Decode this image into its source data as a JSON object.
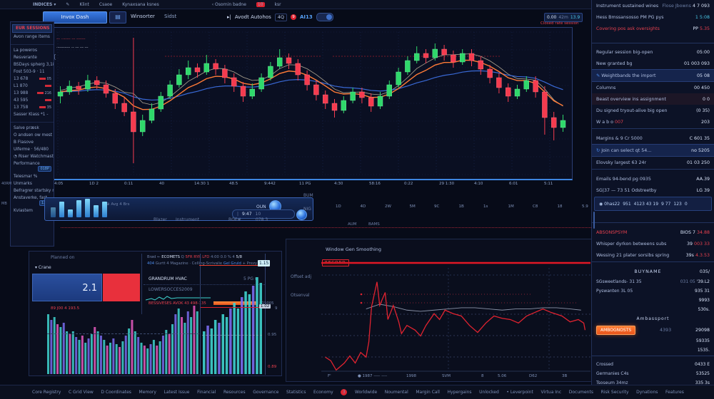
{
  "colors": {
    "up": "#2fd86b",
    "down": "#f53b4f",
    "ma_fast": "#ff7b37",
    "ma_slow": "#3c6fe0",
    "ma_mid": "#e8d9b8",
    "accent": "#3d85e0",
    "alert": "#e02330"
  },
  "menubar": {
    "brand": "INDICES",
    "caret": "▾",
    "items": [
      "✎",
      "Klint",
      "Csaoe",
      "Kynaxsana ksnes"
    ],
    "right_group": "‹ Osornin badne",
    "right_badge": "10",
    "right_tail": "ksr"
  },
  "toolbar": {
    "primary_button": "Invox Dash",
    "grid_button": "▤",
    "tabs": [
      "Winsorter",
      "Sidst"
    ],
    "auto_prefix": "▸|",
    "auto_label": "Avodt Autohos",
    "timeframe": "4Q",
    "alert_count": "9",
    "ai_label": "AI13",
    "header_badge": {
      "a": "0.00",
      "b": "42m",
      "c": "13.9"
    },
    "header_sub": "Closed rate session"
  },
  "left_panel": {
    "items": [
      {
        "t": "EUR SESSIONS",
        "s": "hl"
      },
      {
        "t": "Avon range items"
      },
      {
        "t": "",
        "s": "gap"
      },
      {
        "t": "La poweros"
      },
      {
        "t": "Resverante"
      },
      {
        "t": "BSDays spherg 3,185"
      },
      {
        "t": "Fost 503-9 · 11"
      },
      {
        "t": "13 678",
        "n": "05",
        "s": "num"
      },
      {
        "t": "L1 870",
        "n": "",
        "s": "num"
      },
      {
        "t": "13 988",
        "n": "216",
        "s": "num"
      },
      {
        "t": "43 595",
        "n": "",
        "s": "num"
      },
      {
        "t": "13 758",
        "n": "35",
        "s": "num"
      },
      {
        "t": "Sasser Klass *1 -"
      },
      {
        "t": "",
        "s": "gap"
      },
      {
        "t": "Salve præsk"
      },
      {
        "t": "O andsen ow mest"
      },
      {
        "t": "B Flasove"
      },
      {
        "t": "Ulferme · 56/480"
      },
      {
        "t": "◔ Riser Watchmast"
      },
      {
        "t": "Performance",
        "chip": "018P"
      },
      {
        "t": "Telesmar %"
      },
      {
        "t": "Unmarks"
      },
      {
        "t": "Befragrer startsky mit remune"
      },
      {
        "t": "Anstaverke, fast",
        "chip": "13.3"
      },
      {
        "t": "Kvlastem"
      }
    ]
  },
  "chart": {
    "annotation1": "–– ··–––– –– –––––",
    "annotation2": "·––––––– ·– –– –– ––",
    "brace": "{",
    "x_labels": [
      "4:05",
      "1D 2",
      "0:11",
      "40",
      "14:30 1",
      "48.5",
      "9:442",
      "11 PG",
      "4:30",
      "58:16",
      "0:22",
      "29 1:30",
      "4:10",
      "6:01",
      "5:11"
    ],
    "x_labels2": [
      "1D",
      "4D",
      "2W",
      "5M",
      "9C",
      "1B",
      "1s",
      "1M",
      "C8",
      "18",
      "5.9"
    ],
    "candles": [
      [
        55,
        62,
        50,
        58
      ],
      [
        58,
        66,
        56,
        62
      ],
      [
        62,
        65,
        56,
        60
      ],
      [
        60,
        70,
        58,
        66
      ],
      [
        66,
        69,
        60,
        63
      ],
      [
        63,
        66,
        54,
        57
      ],
      [
        57,
        60,
        46,
        50
      ],
      [
        50,
        54,
        41,
        44
      ],
      [
        44,
        96,
        8,
        30
      ],
      [
        30,
        42,
        27,
        38
      ],
      [
        38,
        50,
        36,
        46
      ],
      [
        46,
        58,
        44,
        55
      ],
      [
        55,
        66,
        53,
        63
      ],
      [
        63,
        74,
        61,
        70
      ],
      [
        70,
        80,
        67,
        75
      ],
      [
        75,
        78,
        68,
        72
      ],
      [
        72,
        84,
        70,
        78
      ],
      [
        78,
        81,
        70,
        74
      ],
      [
        74,
        77,
        64,
        68
      ],
      [
        68,
        71,
        58,
        62
      ],
      [
        62,
        65,
        51,
        55
      ],
      [
        55,
        64,
        53,
        60
      ],
      [
        60,
        71,
        58,
        68
      ],
      [
        68,
        79,
        66,
        76
      ],
      [
        76,
        88,
        74,
        82
      ],
      [
        82,
        85,
        74,
        78
      ],
      [
        78,
        81,
        66,
        70
      ],
      [
        70,
        73,
        59,
        63
      ],
      [
        63,
        66,
        52,
        56
      ],
      [
        56,
        59,
        46,
        50
      ],
      [
        50,
        53,
        40,
        45
      ],
      [
        45,
        55,
        43,
        52
      ],
      [
        52,
        61,
        50,
        58
      ],
      [
        58,
        61,
        50,
        54
      ],
      [
        54,
        57,
        44,
        48
      ],
      [
        48,
        58,
        46,
        55
      ],
      [
        55,
        66,
        53,
        63
      ],
      [
        63,
        75,
        61,
        72
      ],
      [
        72,
        83,
        70,
        80
      ],
      [
        80,
        90,
        78,
        85
      ],
      [
        85,
        88,
        78,
        82
      ],
      [
        82,
        92,
        80,
        88
      ],
      [
        88,
        91,
        80,
        84
      ],
      [
        84,
        87,
        75,
        79
      ],
      [
        79,
        88,
        77,
        85
      ],
      [
        85,
        88,
        76,
        80
      ],
      [
        80,
        83,
        70,
        74
      ],
      [
        74,
        77,
        64,
        68
      ],
      [
        68,
        71,
        57,
        61
      ],
      [
        61,
        64,
        51,
        55
      ],
      [
        55,
        63,
        53,
        60
      ],
      [
        60,
        69,
        58,
        66
      ],
      [
        66,
        69,
        54,
        58
      ],
      [
        58,
        62,
        28,
        40
      ],
      [
        40,
        44,
        24,
        33
      ],
      [
        33,
        42,
        30,
        38
      ]
    ]
  },
  "volume_panel": {
    "bars": [
      14,
      22,
      11,
      24,
      26,
      17,
      22
    ],
    "avg_label": "⊕ Avg 4 Brs",
    "oun": "OUN",
    "time": "9:47",
    "count": "10",
    "side_labels": [
      "BUM",
      "NIG"
    ],
    "below_labels": [
      "Blazer",
      "Instrument",
      "ROE#",
      "078 3"
    ],
    "sep_labels": [
      "AUM",
      "BAMS"
    ]
  },
  "bl_panel": {
    "left_top": "Planned on",
    "left_drop": "▾ Crane",
    "big_value": "2.1",
    "left_red_text": "89 J00 4 193.5",
    "hdr1": [
      {
        "t": "Brød ←",
        "c": "dim"
      },
      {
        "t": "ECOMETS",
        "c": "wht"
      },
      {
        "t": "Q",
        "c": "dim"
      },
      {
        "t": "5FR RYR LFD",
        "c": "red"
      },
      {
        "t": "4:00 0.0",
        "c": "dim"
      },
      {
        "t": "% 4",
        "c": "dim"
      },
      {
        "t": "5/8",
        "c": "wht"
      }
    ],
    "hdr2": [
      {
        "t": "404",
        "c": "blue"
      },
      {
        "t": "Gurtt",
        "c": "dim"
      },
      {
        "t": "4 Magazine",
        "c": "dim"
      },
      {
        "t": "· Celling-Scrivalie",
        "c": "dim"
      },
      {
        "t": "Gel Gruld",
        "c": "blue"
      },
      {
        "t": "+ Prezy BRB",
        "c": "dim"
      }
    ],
    "row1_l": "GRANDRUM HVAC",
    "row1_v": "5 PG s",
    "row2_l": "LOWERSOCCES2009",
    "orange_row_text": "BESSIVESES AVOK 43 498-135",
    "orange_row_tail": "B15005",
    "axis_badge_top": "1.15",
    "axis_badge_mid": "1.02",
    "axis_label_low": "0.95",
    "axis_label_red": "0.89",
    "axis_tick": "9",
    "bars": [
      0.42,
      0.38,
      0.4,
      0.35,
      0.33,
      0.36,
      0.3,
      0.28,
      0.3,
      0.26,
      0.24,
      0.27,
      0.22,
      0.25,
      0.28,
      0.33,
      0.3,
      0.27,
      0.24,
      0.2,
      0.22,
      0.25,
      0.21,
      0.19,
      0.23,
      0.27,
      0.32,
      0.38,
      0.3,
      0.26,
      0.22,
      0.2,
      0.18,
      0.21,
      0.24,
      0.2,
      0.23,
      0.27,
      0.31,
      0.28,
      0.35,
      0.42,
      0.46,
      0.4,
      0.36,
      0.44,
      0.4,
      0.48,
      0.44
    ],
    "sub_bars": [
      0.3,
      0.34,
      0.32,
      0.38,
      0.36,
      0.42,
      0.4,
      0.46,
      0.5,
      0.46,
      0.54,
      0.58,
      0.56,
      0.62,
      0.68,
      0.64
    ]
  },
  "bm_panel": {
    "title": "Window Gen Smoothing",
    "record_badge": "RECORD",
    "left_label1": "Offset adj",
    "left_label2": "Otsenval",
    "x_labels": [
      {
        "t": "F'",
        "x": 58
      },
      {
        "t": "● 1987 ⸺ ----",
        "x": 100
      },
      {
        "t": "1998",
        "x": 168
      },
      {
        "t": "SVM",
        "x": 218
      },
      {
        "t": "8",
        "x": 273
      },
      {
        "t": "5.06",
        "x": 296
      },
      {
        "t": "D62",
        "x": 340
      },
      {
        "t": "3B",
        "x": 386
      }
    ],
    "chart_data": {
      "type": "line",
      "series": [
        {
          "name": "signal",
          "color": "#e02330",
          "points": [
            [
              0.02,
              0.85
            ],
            [
              0.04,
              0.88
            ],
            [
              0.06,
              0.96
            ],
            [
              0.09,
              0.9
            ],
            [
              0.11,
              0.84
            ],
            [
              0.13,
              0.9
            ],
            [
              0.15,
              0.81
            ],
            [
              0.17,
              0.85
            ],
            [
              0.18,
              0.72
            ],
            [
              0.19,
              0.42
            ],
            [
              0.21,
              0.21
            ],
            [
              0.22,
              0.41
            ],
            [
              0.24,
              0.3
            ],
            [
              0.25,
              0.53
            ],
            [
              0.27,
              0.41
            ],
            [
              0.29,
              0.55
            ],
            [
              0.3,
              0.65
            ],
            [
              0.32,
              0.58
            ],
            [
              0.35,
              0.62
            ],
            [
              0.37,
              0.67
            ],
            [
              0.39,
              0.58
            ],
            [
              0.42,
              0.48
            ],
            [
              0.44,
              0.53
            ],
            [
              0.46,
              0.45
            ],
            [
              0.49,
              0.48
            ],
            [
              0.52,
              0.5
            ],
            [
              0.55,
              0.58
            ],
            [
              0.58,
              0.64
            ],
            [
              0.61,
              0.56
            ],
            [
              0.64,
              0.5
            ],
            [
              0.67,
              0.52
            ],
            [
              0.7,
              0.53
            ],
            [
              0.73,
              0.56
            ],
            [
              0.76,
              0.5
            ],
            [
              0.79,
              0.47
            ],
            [
              0.82,
              0.44
            ],
            [
              0.85,
              0.47
            ],
            [
              0.89,
              0.5
            ],
            [
              0.92,
              0.55
            ],
            [
              0.95,
              0.53
            ],
            [
              0.97,
              0.56
            ],
            [
              0.975,
              0.62
            ]
          ]
        },
        {
          "name": "baseline",
          "color": "#8a93a8",
          "points": [
            [
              0.17,
              0.44
            ],
            [
              0.22,
              0.4
            ],
            [
              0.27,
              0.42
            ],
            [
              0.32,
              0.45
            ],
            [
              0.37,
              0.46
            ],
            [
              0.42,
              0.45
            ],
            [
              0.47,
              0.44
            ],
            [
              0.52,
              0.43
            ],
            [
              0.57,
              0.43
            ],
            [
              0.62,
              0.44
            ],
            [
              0.67,
              0.45
            ],
            [
              0.72,
              0.44
            ],
            [
              0.77,
              0.44
            ],
            [
              0.82,
              0.43
            ],
            [
              0.87,
              0.43
            ],
            [
              0.92,
              0.44
            ],
            [
              0.96,
              0.45
            ]
          ]
        }
      ]
    }
  },
  "sidebar": {
    "rows": [
      {
        "t": "r2",
        "l": "Instrument sustained wines",
        "m": "Flose Jbowns",
        "v": "4 7 093"
      },
      {
        "t": "r",
        "l": "Hess Bmssansosso PM PG pys",
        "v": "1 5:08",
        "vc": "cyan"
      },
      {
        "t": "r",
        "l": "Covering pos ask oversights",
        "lc": "red",
        "v": "PP ",
        "vr": "5.35"
      },
      {
        "t": "sp"
      },
      {
        "t": "r",
        "l": "Regular session big-open",
        "v": "05:00"
      },
      {
        "t": "r",
        "l": "New granted bg",
        "v": "01 003 093"
      },
      {
        "t": "r",
        "l": "Weightbands the import",
        "v": "05 08",
        "hl": 1,
        "ic": "✎"
      },
      {
        "t": "r",
        "l": "Columns",
        "v": "00 450"
      },
      {
        "t": "r",
        "l": "Beast overview ins assignment",
        "v": "0 0",
        "tint": 1
      },
      {
        "t": "r",
        "l": "Du signed tryout-alive big open",
        "v": "(0 35)"
      },
      {
        "t": "r",
        "l": "W a b o ",
        "lr": "007",
        "v": "203"
      },
      {
        "t": "d"
      },
      {
        "t": "r",
        "l": "Margins & 9 Cr 5000",
        "v": "C 601 35"
      },
      {
        "t": "r",
        "l": "Join can select qt 54...",
        "v": "no 5205",
        "hl": 1,
        "ic": "↻"
      },
      {
        "t": "r",
        "l": "Elovsky largest 63 24r",
        "v": "01 03 250"
      },
      {
        "t": "d"
      },
      {
        "t": "r",
        "l": "Emails 94-bend pg 0935",
        "v": "AA.39"
      },
      {
        "t": "r",
        "l": "SG|37 — 73 51 Odstreetby",
        "v": "LG 39"
      },
      {
        "t": "chips",
        "c": [
          "◉ 0has22",
          "951",
          "4123 43 19",
          "9 77",
          "123",
          "0"
        ]
      },
      {
        "t": "scroll"
      },
      {
        "t": "d"
      },
      {
        "t": "r",
        "l": "ABSONSPSYM",
        "lc": "red",
        "v": "BIOS 7 ",
        "vr": "34.88"
      },
      {
        "t": "r",
        "l": "Whisper dyrkon betweens subs",
        "v": "39 ",
        "vr": "003 33"
      },
      {
        "t": "r",
        "l": "Wessing 21 plater sorsibs spring",
        "v": "39s ",
        "vr": "4.3.53"
      },
      {
        "t": "d"
      },
      {
        "t": "r",
        "l": "BUYNAME",
        "center": 1,
        "v": "035/"
      },
      {
        "t": "r2",
        "l": "SGsweetlands- 31 35",
        "m": "031 05",
        "v": "'39.L2",
        "sm": 1
      },
      {
        "t": "r",
        "l": "Pyswanten 3L 05",
        "v": "935 31",
        "sm": 1
      },
      {
        "t": "r",
        "l": "",
        "v": "9993",
        "sm": 1
      },
      {
        "t": "r",
        "l": "",
        "v": "530s.",
        "sm": 1
      },
      {
        "t": "r",
        "l": "Ambassport",
        "center": 1,
        "v": "",
        "sm": 1
      },
      {
        "t": "btn",
        "b": "AMBOGNOSTS",
        "m": "4393",
        "v": "29098"
      },
      {
        "t": "r",
        "l": "",
        "v": "59335",
        "sm": 1
      },
      {
        "t": "r",
        "l": "",
        "v": "1535.",
        "sm": 1
      },
      {
        "t": "d"
      },
      {
        "t": "r",
        "l": "Crossed",
        "v": "0433 E",
        "sm": 1
      },
      {
        "t": "r",
        "l": "Germanies C4s",
        "v": "53525",
        "sm": 1
      },
      {
        "t": "r",
        "l": "Tsoseum 34mz",
        "v": "335 3s",
        "sm": 1
      },
      {
        "t": "icons",
        "list": [
          {
            "g": "◉",
            "n": "camera-icon"
          },
          {
            "g": "▤",
            "n": "monitor-icon",
            "lbl": "1099"
          },
          {
            "g": "¢",
            "n": "cent-icon"
          },
          {
            "g": "⚙",
            "n": "gear-icon"
          },
          {
            "g": "densd",
            "n": "label",
            "txt": 1
          },
          {
            "g": "☎",
            "n": "phone-icon"
          },
          {
            "g": "0091",
            "n": "code-label",
            "txt": 1,
            "c": "blue"
          }
        ]
      }
    ]
  },
  "statusbar": {
    "items": [
      {
        "t": "Core Registry"
      },
      {
        "t": "C Grid View"
      },
      {
        "t": "D Coordinates"
      },
      {
        "t": "Memory"
      },
      {
        "t": "Latest Issue"
      },
      {
        "t": "Financial"
      },
      {
        "t": "Resources"
      },
      {
        "t": "Governance"
      },
      {
        "t": "Statistics"
      },
      {
        "t": "Economy"
      },
      {
        "badge": "3"
      },
      {
        "t": "Worldwide"
      },
      {
        "t": "Noumental"
      },
      {
        "t": "Margin Call"
      },
      {
        "t": "Hypergains"
      },
      {
        "t": "Unlocked"
      },
      {
        "t": "Leverpoint",
        "dot": 1
      },
      {
        "t": "Virtua Inc"
      },
      {
        "t": "Documents"
      },
      {
        "t": "Risk Security"
      },
      {
        "t": "Dynations"
      },
      {
        "t": "Features"
      }
    ]
  }
}
